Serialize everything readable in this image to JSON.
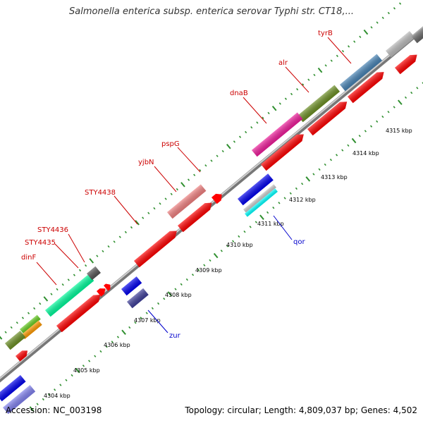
{
  "title": "Salmonella enterica subsp. enterica serovar Typhi str. CT18,...",
  "footer": {
    "accession": "Accession: NC_003198",
    "summary": "Topology: circular; Length: 4,809,037 bp; Genes: 4,502"
  },
  "colors": {
    "backbone": "#888888",
    "tick": "#2f8f2f",
    "forward_label": "#cc0000",
    "reverse_label": "#0000cc",
    "cds": "#ff0000"
  },
  "ticks": [
    "4304 kbp",
    "4305 kbp",
    "4306 kbp",
    "4307 kbp",
    "4308 kbp",
    "4309 kbp",
    "4310 kbp",
    "4311 kbp",
    "4312 kbp",
    "4313 kbp",
    "4314 kbp",
    "4315 kbp"
  ],
  "forward_genes": [
    "dinF",
    "STY4435",
    "STY4436",
    "STY4438",
    "yjbN",
    "pspG",
    "dnaB",
    "alr",
    "tyrB"
  ],
  "reverse_genes": [
    "zur",
    "qor"
  ],
  "features": [
    {
      "name": "feature-gray-top",
      "color": "#bbbbbb"
    },
    {
      "name": "feature-steelblue",
      "color": "#4682b4"
    },
    {
      "name": "feature-olive",
      "color": "#6b8e23"
    },
    {
      "name": "feature-magenta",
      "color": "#ee1c9a"
    },
    {
      "name": "feature-pink",
      "color": "#f08080"
    },
    {
      "name": "feature-springgreen",
      "color": "#00fa9a"
    },
    {
      "name": "feature-darkgray",
      "color": "#555555"
    },
    {
      "name": "feature-lime",
      "color": "#66cc22"
    },
    {
      "name": "feature-orange",
      "color": "#ff9900"
    },
    {
      "name": "feature-olive-small",
      "color": "#6b8e23"
    },
    {
      "name": "feature-blue-rev",
      "color": "#0000ee"
    },
    {
      "name": "feature-slateblue-rev",
      "color": "#3f3f99"
    },
    {
      "name": "feature-silver-rev",
      "color": "#cccccc"
    },
    {
      "name": "feature-cyan-rev",
      "color": "#00ffff"
    },
    {
      "name": "feature-mediumslate-rev",
      "color": "#8080ee"
    }
  ]
}
